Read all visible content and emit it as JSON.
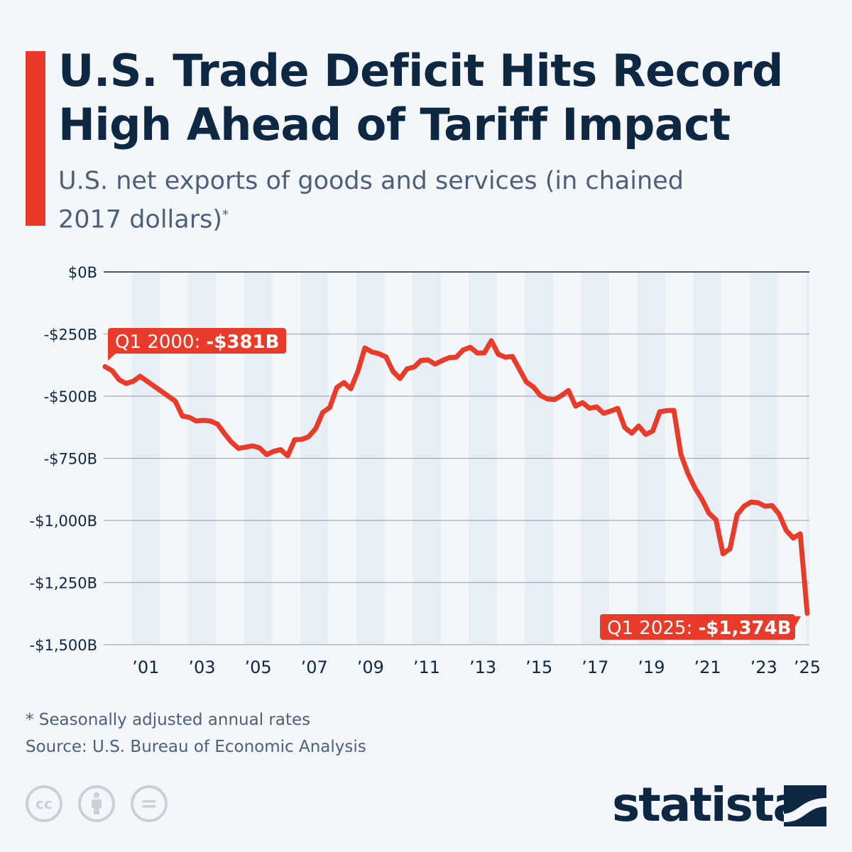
{
  "header": {
    "title": "U.S. Trade Deficit Hits Record High Ahead of Tariff Impact",
    "subtitle": "U.S. net exports of goods and services (in chained 2017 dollars)",
    "subtitle_marker": "*"
  },
  "chart_data": {
    "type": "line",
    "title": "U.S. Trade Deficit Hits Record High Ahead of Tariff Impact",
    "ylabel": "",
    "xlabel": "",
    "ylim": [
      -1500,
      0
    ],
    "yticks": [
      0,
      -250,
      -500,
      -750,
      -1000,
      -1250,
      -1500
    ],
    "ytick_labels": [
      "$0B",
      "-$250B",
      "-$500B",
      "-$750B",
      "-$1,000B",
      "-$1,250B",
      "-$1,500B"
    ],
    "xtick_labels": [
      "’01",
      "’03",
      "’05",
      "’07",
      "’09",
      "’11",
      "’13",
      "’15",
      "’17",
      "’19",
      "’21",
      "’23",
      "’25"
    ],
    "xtick_years": [
      2001,
      2003,
      2005,
      2007,
      2009,
      2011,
      2013,
      2015,
      2017,
      2019,
      2021,
      2023,
      2025
    ],
    "x_start": "Q1 2000",
    "x_end": "Q1 2025",
    "frequency": "quarterly",
    "grid": true,
    "color": "#ea3a2a",
    "values": [
      -381,
      -397,
      -434,
      -449,
      -440,
      -420,
      -440,
      -460,
      -480,
      -500,
      -520,
      -580,
      -585,
      -600,
      -597,
      -600,
      -612,
      -650,
      -685,
      -710,
      -705,
      -700,
      -708,
      -735,
      -722,
      -715,
      -740,
      -675,
      -674,
      -663,
      -630,
      -565,
      -545,
      -465,
      -445,
      -470,
      -400,
      -306,
      -322,
      -329,
      -342,
      -400,
      -429,
      -390,
      -383,
      -356,
      -354,
      -371,
      -357,
      -345,
      -343,
      -314,
      -303,
      -326,
      -326,
      -277,
      -331,
      -343,
      -340,
      -391,
      -443,
      -463,
      -497,
      -511,
      -514,
      -497,
      -477,
      -540,
      -526,
      -549,
      -543,
      -569,
      -560,
      -549,
      -626,
      -649,
      -620,
      -654,
      -640,
      -563,
      -558,
      -557,
      -734,
      -811,
      -869,
      -914,
      -971,
      -997,
      -1134,
      -1114,
      -977,
      -943,
      -926,
      -929,
      -943,
      -940,
      -975,
      -1040,
      -1071,
      -1054,
      -1374
    ],
    "annotations": [
      {
        "label": "Q1 2000: ",
        "value": "-$381B"
      },
      {
        "label": "Q1 2025: ",
        "value": "-$1,374B"
      }
    ]
  },
  "footer": {
    "note": "* Seasonally adjusted annual rates",
    "source": "Source: U.S. Bureau of Economic Analysis",
    "license_icons": [
      "cc-icon",
      "attribution-icon",
      "no-derivatives-icon"
    ],
    "cc_text": "cc",
    "nd_text": "=",
    "brand": "statista"
  }
}
